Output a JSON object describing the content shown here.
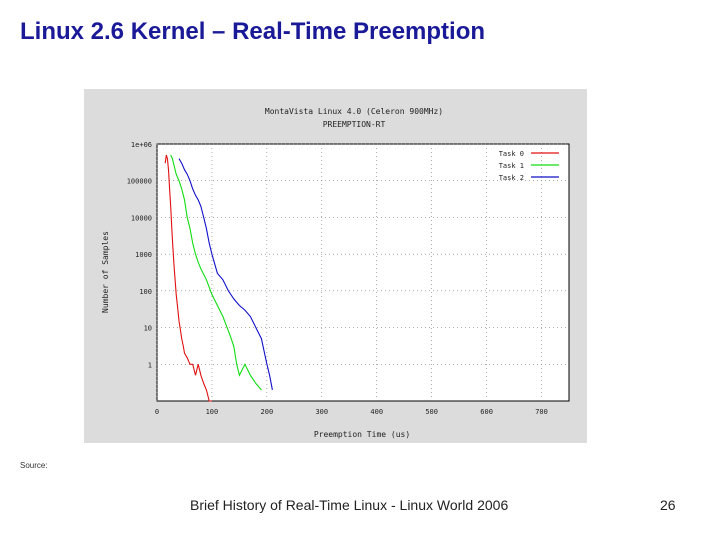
{
  "slide": {
    "title": "Linux 2.6 Kernel – Real-Time Preemption",
    "source_label": "Source:",
    "footer": "Brief History of Real-Time Linux - Linux World 2006",
    "page_number": "26"
  },
  "chart_data": {
    "type": "line",
    "title": "MontaVista Linux 4.0 (Celeron 900MHz)",
    "subtitle": "PREEMPTION-RT",
    "xlabel": "Preemption Time (us)",
    "ylabel": "Number of Samples",
    "x_ticks": [
      "0",
      "100",
      "200",
      "300",
      "400",
      "500",
      "600",
      "700"
    ],
    "x_tick_values": [
      0,
      100,
      200,
      300,
      400,
      500,
      600,
      700
    ],
    "y_ticks": [
      "1e+06",
      "100000",
      "10000",
      "1000",
      "100",
      "10",
      "1"
    ],
    "y_tick_values": [
      1000000,
      100000,
      10000,
      1000,
      100,
      10,
      1
    ],
    "xlim": [
      0,
      750
    ],
    "ylim": [
      0.1,
      1000000
    ],
    "y_scale": "log",
    "grid": true,
    "legend_position": "top-right",
    "background": "#ffffff",
    "series": [
      {
        "name": "Task 0",
        "color": "#e01010",
        "x": [
          15,
          17,
          19,
          21,
          23,
          25,
          27,
          29,
          31,
          33,
          35,
          38,
          40,
          43,
          45,
          48,
          50,
          55,
          60,
          65,
          70,
          75,
          80,
          85,
          90,
          95,
          100
        ],
        "y": [
          300000,
          500000,
          400000,
          200000,
          60000,
          20000,
          5000,
          1500,
          500,
          200,
          80,
          30,
          15,
          8,
          5,
          3,
          2,
          1.5,
          1,
          1,
          0.5,
          1,
          0.5,
          0.3,
          0.2,
          0.1,
          0.1
        ]
      },
      {
        "name": "Task 1",
        "color": "#10dd10",
        "x": [
          25,
          28,
          30,
          33,
          35,
          40,
          45,
          50,
          55,
          60,
          65,
          70,
          75,
          80,
          90,
          100,
          110,
          120,
          130,
          135,
          140,
          145,
          150,
          160,
          170,
          180,
          190
        ],
        "y": [
          500000,
          400000,
          300000,
          200000,
          150000,
          100000,
          60000,
          30000,
          10000,
          5000,
          2000,
          1000,
          600,
          400,
          200,
          80,
          40,
          20,
          8,
          5,
          3,
          1,
          0.5,
          1,
          0.5,
          0.3,
          0.2
        ]
      },
      {
        "name": "Task 2",
        "color": "#1010c8",
        "x": [
          40,
          45,
          50,
          55,
          60,
          65,
          70,
          75,
          80,
          85,
          90,
          95,
          100,
          110,
          120,
          130,
          140,
          150,
          160,
          170,
          180,
          190,
          200,
          205,
          210
        ],
        "y": [
          400000,
          300000,
          200000,
          150000,
          100000,
          60000,
          40000,
          30000,
          20000,
          10000,
          5000,
          2000,
          1000,
          300,
          200,
          100,
          60,
          40,
          30,
          20,
          10,
          5,
          1,
          0.5,
          0.2
        ]
      }
    ]
  }
}
